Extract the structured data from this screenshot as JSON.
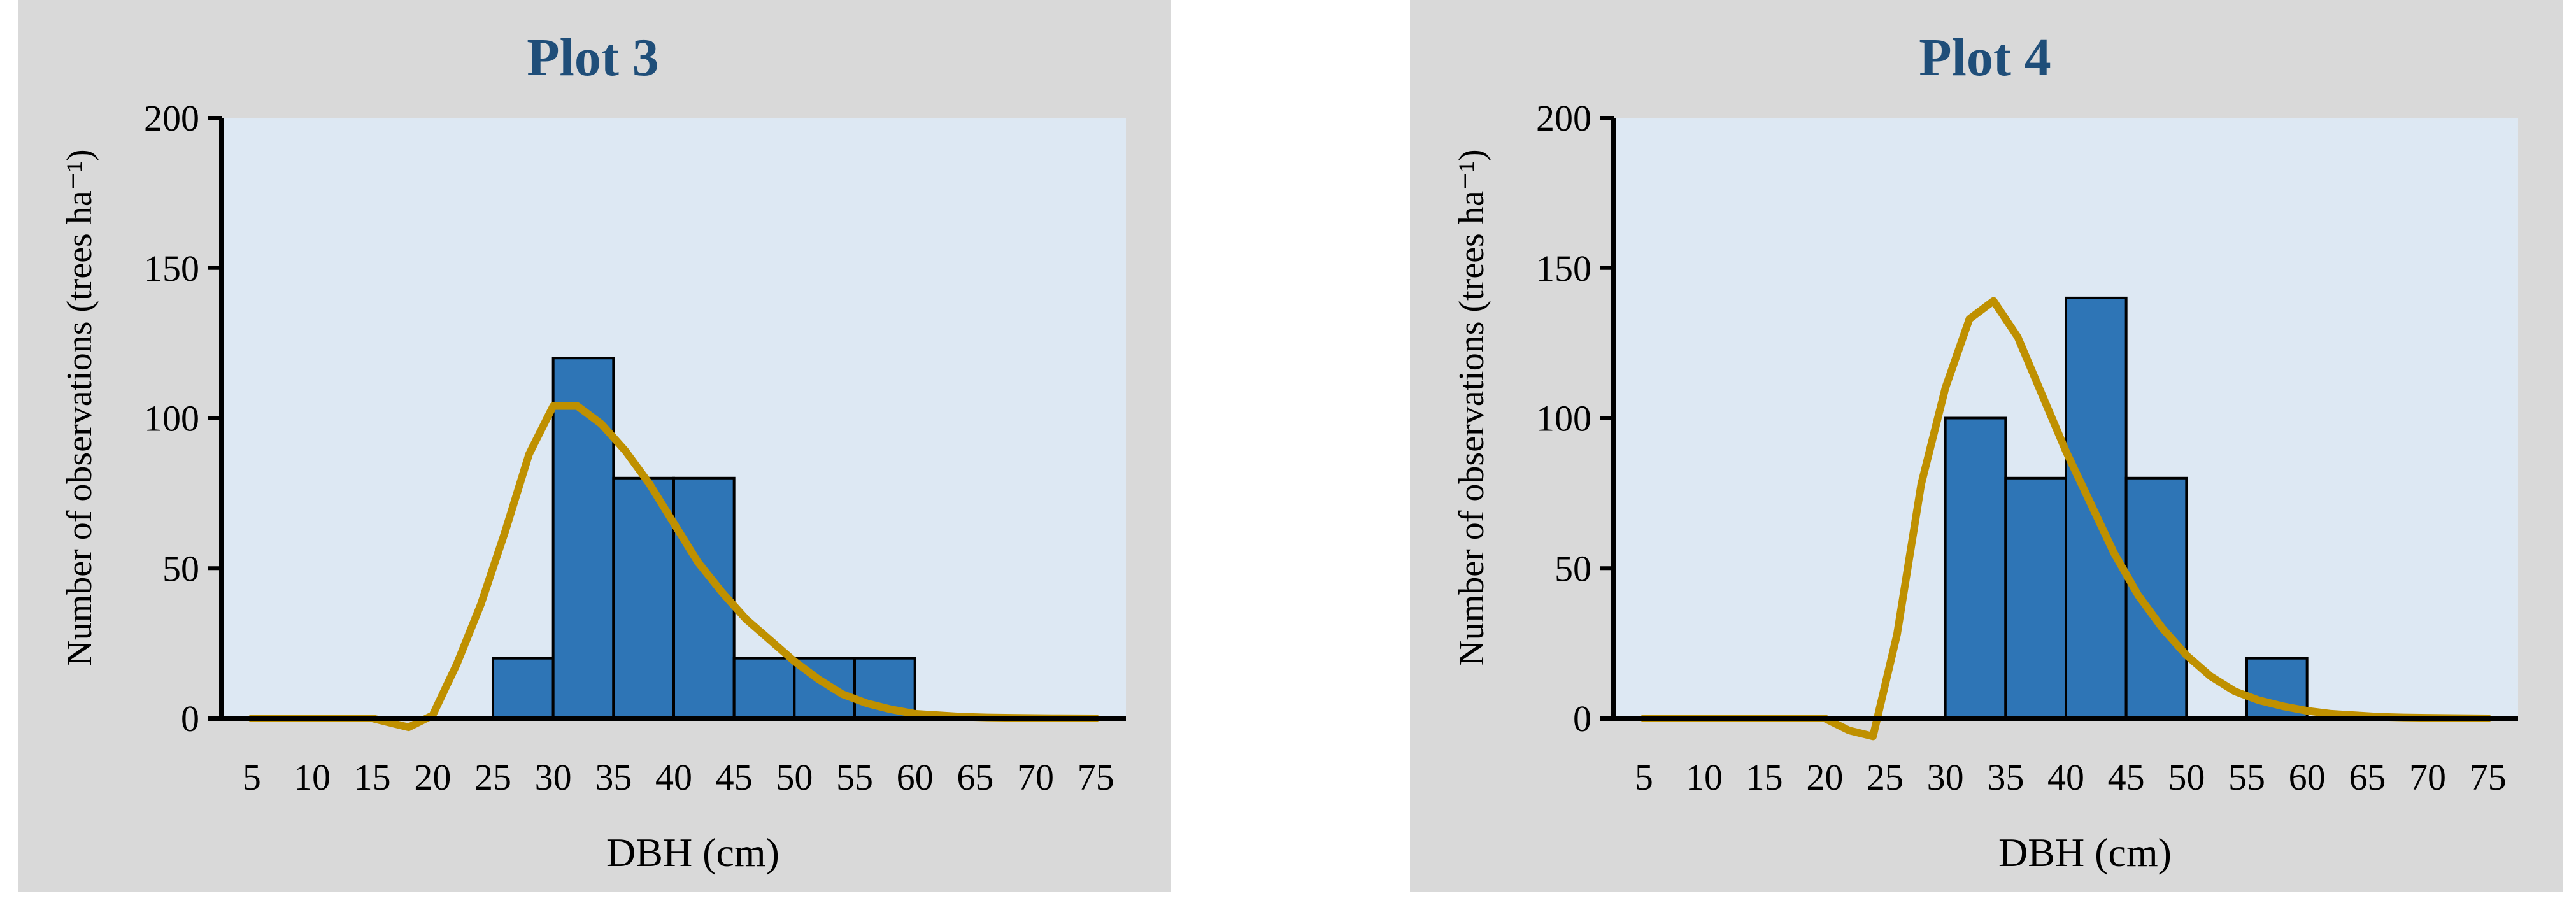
{
  "colors": {
    "panel_background": "#d9d9d9",
    "plot_background": "#dde8f3",
    "bar_fill": "#2e75b6",
    "curve": "#bf9000",
    "title": "#1f4e79"
  },
  "chart_data": [
    {
      "type": "bar",
      "title": "Plot 3",
      "xlabel": "DBH (cm)",
      "ylabel": "Number of observations (trees ha⁻¹)",
      "categories": [
        "5",
        "10",
        "15",
        "20",
        "25",
        "30",
        "35",
        "40",
        "45",
        "50",
        "55",
        "60",
        "65",
        "70",
        "75"
      ],
      "values": [
        0,
        0,
        0,
        0,
        20,
        120,
        80,
        80,
        20,
        20,
        20,
        0,
        0,
        0,
        0
      ],
      "ylim": [
        0,
        200
      ],
      "yticks": [
        0,
        50,
        100,
        150,
        200
      ],
      "grid": false,
      "curve": {
        "type": "line",
        "x": [
          5,
          10,
          15,
          18,
          20,
          22,
          24,
          26,
          28,
          30,
          32,
          34,
          36,
          38,
          40,
          42,
          44,
          46,
          48,
          50,
          52,
          54,
          56,
          58,
          60,
          62,
          64,
          66,
          68,
          70,
          72,
          75
        ],
        "y": [
          0,
          0,
          0,
          -3,
          1,
          18,
          38,
          62,
          88,
          104,
          104,
          98,
          89,
          78,
          65,
          52,
          42,
          33,
          26,
          19,
          13,
          8,
          5,
          3,
          1.5,
          1,
          0.5,
          0.3,
          0.2,
          0.1,
          0.05,
          0
        ]
      }
    },
    {
      "type": "bar",
      "title": "Plot 4",
      "xlabel": "DBH (cm)",
      "ylabel": "Number of observations (trees ha⁻¹)",
      "categories": [
        "5",
        "10",
        "15",
        "20",
        "25",
        "30",
        "35",
        "40",
        "45",
        "50",
        "55",
        "60",
        "65",
        "70",
        "75"
      ],
      "values": [
        0,
        0,
        0,
        0,
        0,
        100,
        80,
        140,
        80,
        0,
        20,
        0,
        0,
        0,
        0
      ],
      "ylim": [
        0,
        200
      ],
      "yticks": [
        0,
        50,
        100,
        150,
        200
      ],
      "grid": false,
      "curve": {
        "type": "line",
        "x": [
          5,
          10,
          15,
          20,
          22,
          24,
          26,
          28,
          30,
          32,
          34,
          36,
          38,
          40,
          42,
          44,
          46,
          48,
          50,
          52,
          54,
          56,
          58,
          60,
          62,
          64,
          66,
          68,
          70,
          72,
          75
        ],
        "y": [
          0,
          0,
          0,
          0,
          -4,
          -6,
          28,
          78,
          110,
          133,
          139,
          127,
          108,
          89,
          72,
          55,
          41,
          30,
          21,
          14,
          9,
          6,
          4,
          2.5,
          1.5,
          1,
          0.5,
          0.3,
          0.2,
          0.1,
          0
        ]
      }
    }
  ]
}
